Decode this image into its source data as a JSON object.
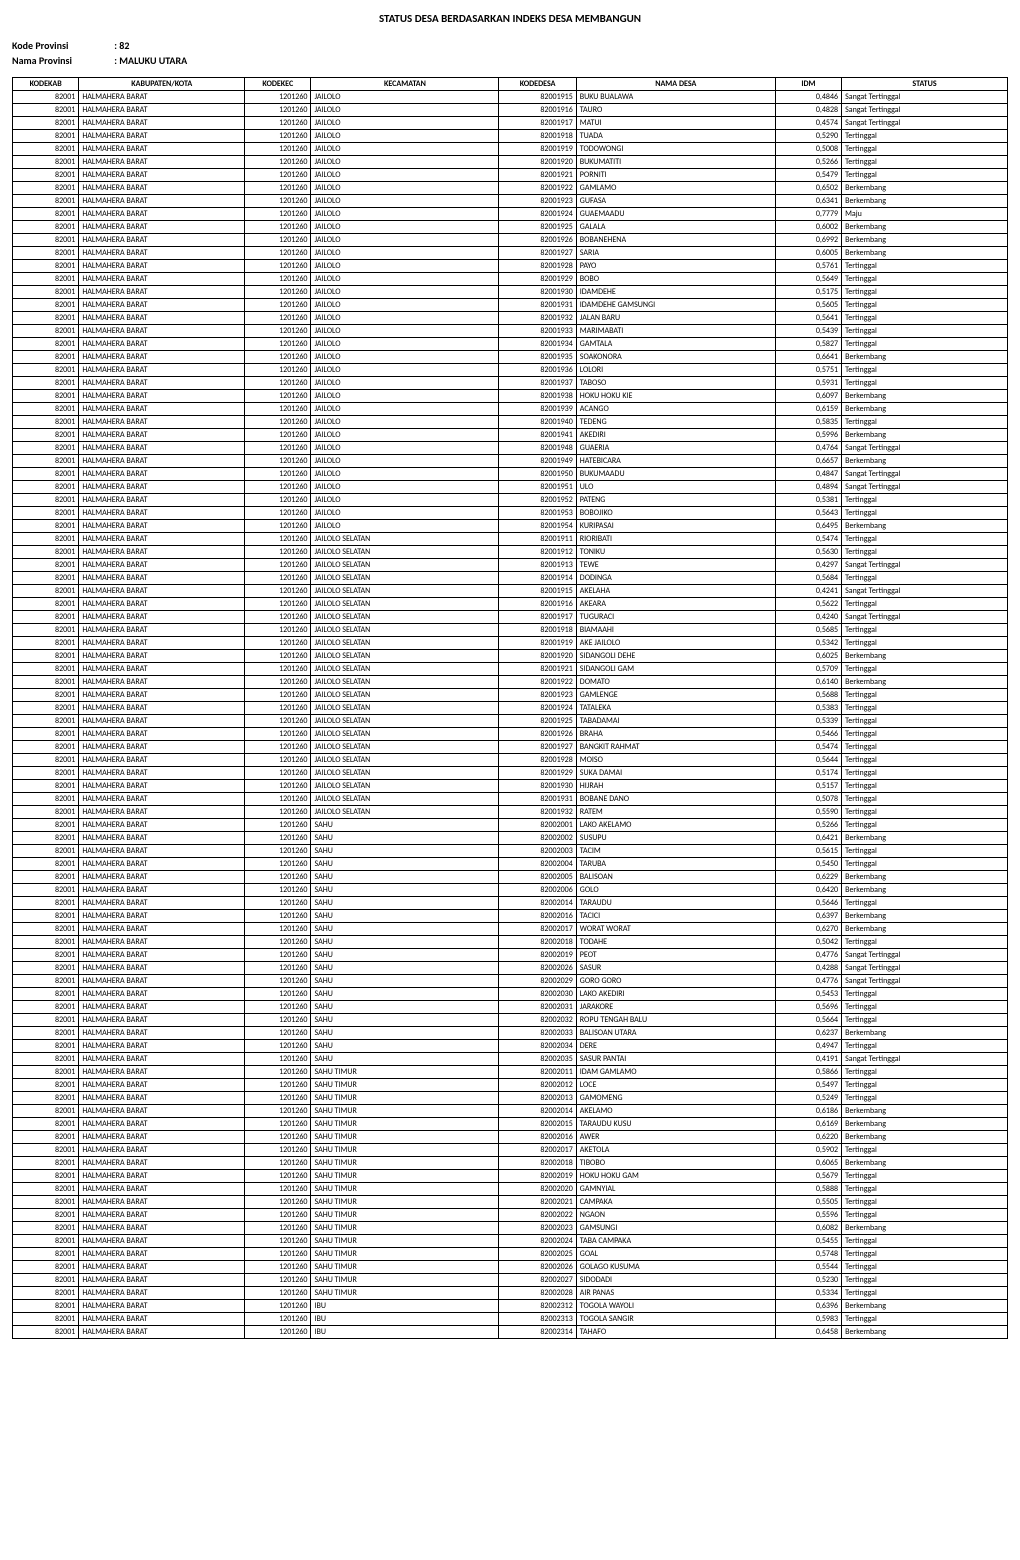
{
  "title": "STATUS DESA BERDASARKAN INDEKS DESA MEMBANGUN",
  "meta": {
    "kode_label": "Kode Provinsi",
    "kode_value": ": 82",
    "nama_label": "Nama Provinsi",
    "nama_value": ": MALUKU UTARA"
  },
  "columns": [
    "KODEKAB",
    "KABUPATEN/KOTA",
    "KODEKEC",
    "KECAMATAN",
    "KODEDESA",
    "NAMA DESA",
    "IDM",
    "STATUS"
  ],
  "rows": [
    [
      "82001",
      "HALMAHERA BARAT",
      "1201260",
      "JAILOLO",
      "82001915",
      "BUKU BUALAWA",
      "0,4846",
      "Sangat Tertinggal"
    ],
    [
      "82001",
      "HALMAHERA BARAT",
      "1201260",
      "JAILOLO",
      "82001916",
      "TAURO",
      "0,4828",
      "Sangat Tertinggal"
    ],
    [
      "82001",
      "HALMAHERA BARAT",
      "1201260",
      "JAILOLO",
      "82001917",
      "MATUI",
      "0,4574",
      "Sangat Tertinggal"
    ],
    [
      "82001",
      "HALMAHERA BARAT",
      "1201260",
      "JAILOLO",
      "82001918",
      "TUADA",
      "0,5290",
      "Tertinggal"
    ],
    [
      "82001",
      "HALMAHERA BARAT",
      "1201260",
      "JAILOLO",
      "82001919",
      "TODOWONGI",
      "0,5008",
      "Tertinggal"
    ],
    [
      "82001",
      "HALMAHERA BARAT",
      "1201260",
      "JAILOLO",
      "82001920",
      "BUKUMATITI",
      "0,5266",
      "Tertinggal"
    ],
    [
      "82001",
      "HALMAHERA BARAT",
      "1201260",
      "JAILOLO",
      "82001921",
      "PORNITI",
      "0,5479",
      "Tertinggal"
    ],
    [
      "82001",
      "HALMAHERA BARAT",
      "1201260",
      "JAILOLO",
      "82001922",
      "GAMLAMO",
      "0,6502",
      "Berkembang"
    ],
    [
      "82001",
      "HALMAHERA BARAT",
      "1201260",
      "JAILOLO",
      "82001923",
      "GUFASA",
      "0,6341",
      "Berkembang"
    ],
    [
      "82001",
      "HALMAHERA BARAT",
      "1201260",
      "JAILOLO",
      "82001924",
      "GUAEMAADU",
      "0,7779",
      "Maju"
    ],
    [
      "82001",
      "HALMAHERA BARAT",
      "1201260",
      "JAILOLO",
      "82001925",
      "GALALA",
      "0,6002",
      "Berkembang"
    ],
    [
      "82001",
      "HALMAHERA BARAT",
      "1201260",
      "JAILOLO",
      "82001926",
      "BOBANEHENA",
      "0,6992",
      "Berkembang"
    ],
    [
      "82001",
      "HALMAHERA BARAT",
      "1201260",
      "JAILOLO",
      "82001927",
      "SARIA",
      "0,6005",
      "Berkembang"
    ],
    [
      "82001",
      "HALMAHERA BARAT",
      "1201260",
      "JAILOLO",
      "82001928",
      "PAYO",
      "0,5761",
      "Tertinggal"
    ],
    [
      "82001",
      "HALMAHERA BARAT",
      "1201260",
      "JAILOLO",
      "82001929",
      "BOBO",
      "0,5649",
      "Tertinggal"
    ],
    [
      "82001",
      "HALMAHERA BARAT",
      "1201260",
      "JAILOLO",
      "82001930",
      "IDAMDEHE",
      "0,5175",
      "Tertinggal"
    ],
    [
      "82001",
      "HALMAHERA BARAT",
      "1201260",
      "JAILOLO",
      "82001931",
      "IDAMDEHE GAMSUNGI",
      "0,5605",
      "Tertinggal"
    ],
    [
      "82001",
      "HALMAHERA BARAT",
      "1201260",
      "JAILOLO",
      "82001932",
      "JALAN BARU",
      "0,5641",
      "Tertinggal"
    ],
    [
      "82001",
      "HALMAHERA BARAT",
      "1201260",
      "JAILOLO",
      "82001933",
      "MARIMABATI",
      "0,5439",
      "Tertinggal"
    ],
    [
      "82001",
      "HALMAHERA BARAT",
      "1201260",
      "JAILOLO",
      "82001934",
      "GAMTALA",
      "0,5827",
      "Tertinggal"
    ],
    [
      "82001",
      "HALMAHERA BARAT",
      "1201260",
      "JAILOLO",
      "82001935",
      "SOAKONORA",
      "0,6641",
      "Berkembang"
    ],
    [
      "82001",
      "HALMAHERA BARAT",
      "1201260",
      "JAILOLO",
      "82001936",
      "LOLORI",
      "0,5751",
      "Tertinggal"
    ],
    [
      "82001",
      "HALMAHERA BARAT",
      "1201260",
      "JAILOLO",
      "82001937",
      "TABOSO",
      "0,5931",
      "Tertinggal"
    ],
    [
      "82001",
      "HALMAHERA BARAT",
      "1201260",
      "JAILOLO",
      "82001938",
      "HOKU HOKU KIE",
      "0,6097",
      "Berkembang"
    ],
    [
      "82001",
      "HALMAHERA BARAT",
      "1201260",
      "JAILOLO",
      "82001939",
      "ACANGO",
      "0,6159",
      "Berkembang"
    ],
    [
      "82001",
      "HALMAHERA BARAT",
      "1201260",
      "JAILOLO",
      "82001940",
      "TEDENG",
      "0,5835",
      "Tertinggal"
    ],
    [
      "82001",
      "HALMAHERA BARAT",
      "1201260",
      "JAILOLO",
      "82001941",
      "AKEDIRI",
      "0,5996",
      "Berkembang"
    ],
    [
      "82001",
      "HALMAHERA BARAT",
      "1201260",
      "JAILOLO",
      "82001948",
      "GUAERIA",
      "0,4764",
      "Sangat Tertinggal"
    ],
    [
      "82001",
      "HALMAHERA BARAT",
      "1201260",
      "JAILOLO",
      "82001949",
      "HATEBICARA",
      "0,6657",
      "Berkembang"
    ],
    [
      "82001",
      "HALMAHERA BARAT",
      "1201260",
      "JAILOLO",
      "82001950",
      "BUKUMAADU",
      "0,4847",
      "Sangat Tertinggal"
    ],
    [
      "82001",
      "HALMAHERA BARAT",
      "1201260",
      "JAILOLO",
      "82001951",
      "ULO",
      "0,4894",
      "Sangat Tertinggal"
    ],
    [
      "82001",
      "HALMAHERA BARAT",
      "1201260",
      "JAILOLO",
      "82001952",
      "PATENG",
      "0,5381",
      "Tertinggal"
    ],
    [
      "82001",
      "HALMAHERA BARAT",
      "1201260",
      "JAILOLO",
      "82001953",
      "BOBOJIKO",
      "0,5643",
      "Tertinggal"
    ],
    [
      "82001",
      "HALMAHERA BARAT",
      "1201260",
      "JAILOLO",
      "82001954",
      "KURIPASAI",
      "0,6495",
      "Berkembang"
    ],
    [
      "82001",
      "HALMAHERA BARAT",
      "1201260",
      "JAILOLO SELATAN",
      "82001911",
      "RIORIBATI",
      "0,5474",
      "Tertinggal"
    ],
    [
      "82001",
      "HALMAHERA BARAT",
      "1201260",
      "JAILOLO SELATAN",
      "82001912",
      "TONIKU",
      "0,5630",
      "Tertinggal"
    ],
    [
      "82001",
      "HALMAHERA BARAT",
      "1201260",
      "JAILOLO SELATAN",
      "82001913",
      "TEWE",
      "0,4297",
      "Sangat Tertinggal"
    ],
    [
      "82001",
      "HALMAHERA BARAT",
      "1201260",
      "JAILOLO SELATAN",
      "82001914",
      "DODINGA",
      "0,5684",
      "Tertinggal"
    ],
    [
      "82001",
      "HALMAHERA BARAT",
      "1201260",
      "JAILOLO SELATAN",
      "82001915",
      "AKELAHA",
      "0,4241",
      "Sangat Tertinggal"
    ],
    [
      "82001",
      "HALMAHERA BARAT",
      "1201260",
      "JAILOLO SELATAN",
      "82001916",
      "AKEARA",
      "0,5622",
      "Tertinggal"
    ],
    [
      "82001",
      "HALMAHERA BARAT",
      "1201260",
      "JAILOLO SELATAN",
      "82001917",
      "TUGURACI",
      "0,4240",
      "Sangat Tertinggal"
    ],
    [
      "82001",
      "HALMAHERA BARAT",
      "1201260",
      "JAILOLO SELATAN",
      "82001918",
      "BIAMAAHI",
      "0,5685",
      "Tertinggal"
    ],
    [
      "82001",
      "HALMAHERA BARAT",
      "1201260",
      "JAILOLO SELATAN",
      "82001919",
      "AKE JAILOLO",
      "0,5342",
      "Tertinggal"
    ],
    [
      "82001",
      "HALMAHERA BARAT",
      "1201260",
      "JAILOLO SELATAN",
      "82001920",
      "SIDANGOLI DEHE",
      "0,6025",
      "Berkembang"
    ],
    [
      "82001",
      "HALMAHERA BARAT",
      "1201260",
      "JAILOLO SELATAN",
      "82001921",
      "SIDANGOLI GAM",
      "0,5709",
      "Tertinggal"
    ],
    [
      "82001",
      "HALMAHERA BARAT",
      "1201260",
      "JAILOLO SELATAN",
      "82001922",
      "DOMATO",
      "0,6140",
      "Berkembang"
    ],
    [
      "82001",
      "HALMAHERA BARAT",
      "1201260",
      "JAILOLO SELATAN",
      "82001923",
      "GAMLENGE",
      "0,5688",
      "Tertinggal"
    ],
    [
      "82001",
      "HALMAHERA BARAT",
      "1201260",
      "JAILOLO SELATAN",
      "82001924",
      "TATALEKA",
      "0,5383",
      "Tertinggal"
    ],
    [
      "82001",
      "HALMAHERA BARAT",
      "1201260",
      "JAILOLO SELATAN",
      "82001925",
      "TABADAMAI",
      "0,5339",
      "Tertinggal"
    ],
    [
      "82001",
      "HALMAHERA BARAT",
      "1201260",
      "JAILOLO SELATAN",
      "82001926",
      "BRAHA",
      "0,5466",
      "Tertinggal"
    ],
    [
      "82001",
      "HALMAHERA BARAT",
      "1201260",
      "JAILOLO SELATAN",
      "82001927",
      "BANGKIT RAHMAT",
      "0,5474",
      "Tertinggal"
    ],
    [
      "82001",
      "HALMAHERA BARAT",
      "1201260",
      "JAILOLO SELATAN",
      "82001928",
      "MOISO",
      "0,5644",
      "Tertinggal"
    ],
    [
      "82001",
      "HALMAHERA BARAT",
      "1201260",
      "JAILOLO SELATAN",
      "82001929",
      "SUKA DAMAI",
      "0,5174",
      "Tertinggal"
    ],
    [
      "82001",
      "HALMAHERA BARAT",
      "1201260",
      "JAILOLO SELATAN",
      "82001930",
      "HIJRAH",
      "0,5157",
      "Tertinggal"
    ],
    [
      "82001",
      "HALMAHERA BARAT",
      "1201260",
      "JAILOLO SELATAN",
      "82001931",
      "BOBANE DANO",
      "0,5078",
      "Tertinggal"
    ],
    [
      "82001",
      "HALMAHERA BARAT",
      "1201260",
      "JAILOLO SELATAN",
      "82001932",
      "RATEM",
      "0,5590",
      "Tertinggal"
    ],
    [
      "82001",
      "HALMAHERA BARAT",
      "1201260",
      "SAHU",
      "82002001",
      "LAKO AKELAMO",
      "0,5266",
      "Tertinggal"
    ],
    [
      "82001",
      "HALMAHERA BARAT",
      "1201260",
      "SAHU",
      "82002002",
      "SUSUPU",
      "0,6421",
      "Berkembang"
    ],
    [
      "82001",
      "HALMAHERA BARAT",
      "1201260",
      "SAHU",
      "82002003",
      "TACIM",
      "0,5615",
      "Tertinggal"
    ],
    [
      "82001",
      "HALMAHERA BARAT",
      "1201260",
      "SAHU",
      "82002004",
      "TARUBA",
      "0,5450",
      "Tertinggal"
    ],
    [
      "82001",
      "HALMAHERA BARAT",
      "1201260",
      "SAHU",
      "82002005",
      "BALISOAN",
      "0,6229",
      "Berkembang"
    ],
    [
      "82001",
      "HALMAHERA BARAT",
      "1201260",
      "SAHU",
      "82002006",
      "GOLO",
      "0,6420",
      "Berkembang"
    ],
    [
      "82001",
      "HALMAHERA BARAT",
      "1201260",
      "SAHU",
      "82002014",
      "TARAUDU",
      "0,5646",
      "Tertinggal"
    ],
    [
      "82001",
      "HALMAHERA BARAT",
      "1201260",
      "SAHU",
      "82002016",
      "TACICI",
      "0,6397",
      "Berkembang"
    ],
    [
      "82001",
      "HALMAHERA BARAT",
      "1201260",
      "SAHU",
      "82002017",
      "WORAT WORAT",
      "0,6270",
      "Berkembang"
    ],
    [
      "82001",
      "HALMAHERA BARAT",
      "1201260",
      "SAHU",
      "82002018",
      "TODAHE",
      "0,5042",
      "Tertinggal"
    ],
    [
      "82001",
      "HALMAHERA BARAT",
      "1201260",
      "SAHU",
      "82002019",
      "PEOT",
      "0,4776",
      "Sangat Tertinggal"
    ],
    [
      "82001",
      "HALMAHERA BARAT",
      "1201260",
      "SAHU",
      "82002026",
      "SASUR",
      "0,4288",
      "Sangat Tertinggal"
    ],
    [
      "82001",
      "HALMAHERA BARAT",
      "1201260",
      "SAHU",
      "82002029",
      "GORO GORO",
      "0,4776",
      "Sangat Tertinggal"
    ],
    [
      "82001",
      "HALMAHERA BARAT",
      "1201260",
      "SAHU",
      "82002030",
      "LAKO AKEDIRI",
      "0,5453",
      "Tertinggal"
    ],
    [
      "82001",
      "HALMAHERA BARAT",
      "1201260",
      "SAHU",
      "82002031",
      "JARAKORE",
      "0,5696",
      "Tertinggal"
    ],
    [
      "82001",
      "HALMAHERA BARAT",
      "1201260",
      "SAHU",
      "82002032",
      "ROPU TENGAH BALU",
      "0,5664",
      "Tertinggal"
    ],
    [
      "82001",
      "HALMAHERA BARAT",
      "1201260",
      "SAHU",
      "82002033",
      "BALISOAN UTARA",
      "0,6237",
      "Berkembang"
    ],
    [
      "82001",
      "HALMAHERA BARAT",
      "1201260",
      "SAHU",
      "82002034",
      "DERE",
      "0,4947",
      "Tertinggal"
    ],
    [
      "82001",
      "HALMAHERA BARAT",
      "1201260",
      "SAHU",
      "82002035",
      "SASUR PANTAI",
      "0,4191",
      "Sangat Tertinggal"
    ],
    [
      "82001",
      "HALMAHERA BARAT",
      "1201260",
      "SAHU TIMUR",
      "82002011",
      "IDAM GAMLAMO",
      "0,5866",
      "Tertinggal"
    ],
    [
      "82001",
      "HALMAHERA BARAT",
      "1201260",
      "SAHU TIMUR",
      "82002012",
      "LOCE",
      "0,5497",
      "Tertinggal"
    ],
    [
      "82001",
      "HALMAHERA BARAT",
      "1201260",
      "SAHU TIMUR",
      "82002013",
      "GAMOMENG",
      "0,5249",
      "Tertinggal"
    ],
    [
      "82001",
      "HALMAHERA BARAT",
      "1201260",
      "SAHU TIMUR",
      "82002014",
      "AKELAMO",
      "0,6186",
      "Berkembang"
    ],
    [
      "82001",
      "HALMAHERA BARAT",
      "1201260",
      "SAHU TIMUR",
      "82002015",
      "TARAUDU KUSU",
      "0,6169",
      "Berkembang"
    ],
    [
      "82001",
      "HALMAHERA BARAT",
      "1201260",
      "SAHU TIMUR",
      "82002016",
      "AWER",
      "0,6220",
      "Berkembang"
    ],
    [
      "82001",
      "HALMAHERA BARAT",
      "1201260",
      "SAHU TIMUR",
      "82002017",
      "AKETOLA",
      "0,5902",
      "Tertinggal"
    ],
    [
      "82001",
      "HALMAHERA BARAT",
      "1201260",
      "SAHU TIMUR",
      "82002018",
      "TIBOBO",
      "0,6065",
      "Berkembang"
    ],
    [
      "82001",
      "HALMAHERA BARAT",
      "1201260",
      "SAHU TIMUR",
      "82002019",
      "HOKU HOKU GAM",
      "0,5679",
      "Tertinggal"
    ],
    [
      "82001",
      "HALMAHERA BARAT",
      "1201260",
      "SAHU TIMUR",
      "82002020",
      "GAMNYIAL",
      "0,5888",
      "Tertinggal"
    ],
    [
      "82001",
      "HALMAHERA BARAT",
      "1201260",
      "SAHU TIMUR",
      "82002021",
      "CAMPAKA",
      "0,5505",
      "Tertinggal"
    ],
    [
      "82001",
      "HALMAHERA BARAT",
      "1201260",
      "SAHU TIMUR",
      "82002022",
      "NGAON",
      "0,5596",
      "Tertinggal"
    ],
    [
      "82001",
      "HALMAHERA BARAT",
      "1201260",
      "SAHU TIMUR",
      "82002023",
      "GAMSUNGI",
      "0,6082",
      "Berkembang"
    ],
    [
      "82001",
      "HALMAHERA BARAT",
      "1201260",
      "SAHU TIMUR",
      "82002024",
      "TABA CAMPAKA",
      "0,5455",
      "Tertinggal"
    ],
    [
      "82001",
      "HALMAHERA BARAT",
      "1201260",
      "SAHU TIMUR",
      "82002025",
      "GOAL",
      "0,5748",
      "Tertinggal"
    ],
    [
      "82001",
      "HALMAHERA BARAT",
      "1201260",
      "SAHU TIMUR",
      "82002026",
      "GOLAGO KUSUMA",
      "0,5544",
      "Tertinggal"
    ],
    [
      "82001",
      "HALMAHERA BARAT",
      "1201260",
      "SAHU TIMUR",
      "82002027",
      "SIDODADI",
      "0,5230",
      "Tertinggal"
    ],
    [
      "82001",
      "HALMAHERA BARAT",
      "1201260",
      "SAHU TIMUR",
      "82002028",
      "AIR PANAS",
      "0,5334",
      "Tertinggal"
    ],
    [
      "82001",
      "HALMAHERA BARAT",
      "1201260",
      "IBU",
      "82002312",
      "TOGOLA WAYOLI",
      "0,6396",
      "Berkembang"
    ],
    [
      "82001",
      "HALMAHERA BARAT",
      "1201260",
      "IBU",
      "82002313",
      "TOGOLA SANGIR",
      "0,5983",
      "Tertinggal"
    ],
    [
      "82001",
      "HALMAHERA BARAT",
      "1201260",
      "IBU",
      "82002314",
      "TAHAFO",
      "0,6458",
      "Berkembang"
    ]
  ],
  "numeric_cols": [
    0,
    2,
    4,
    6
  ]
}
